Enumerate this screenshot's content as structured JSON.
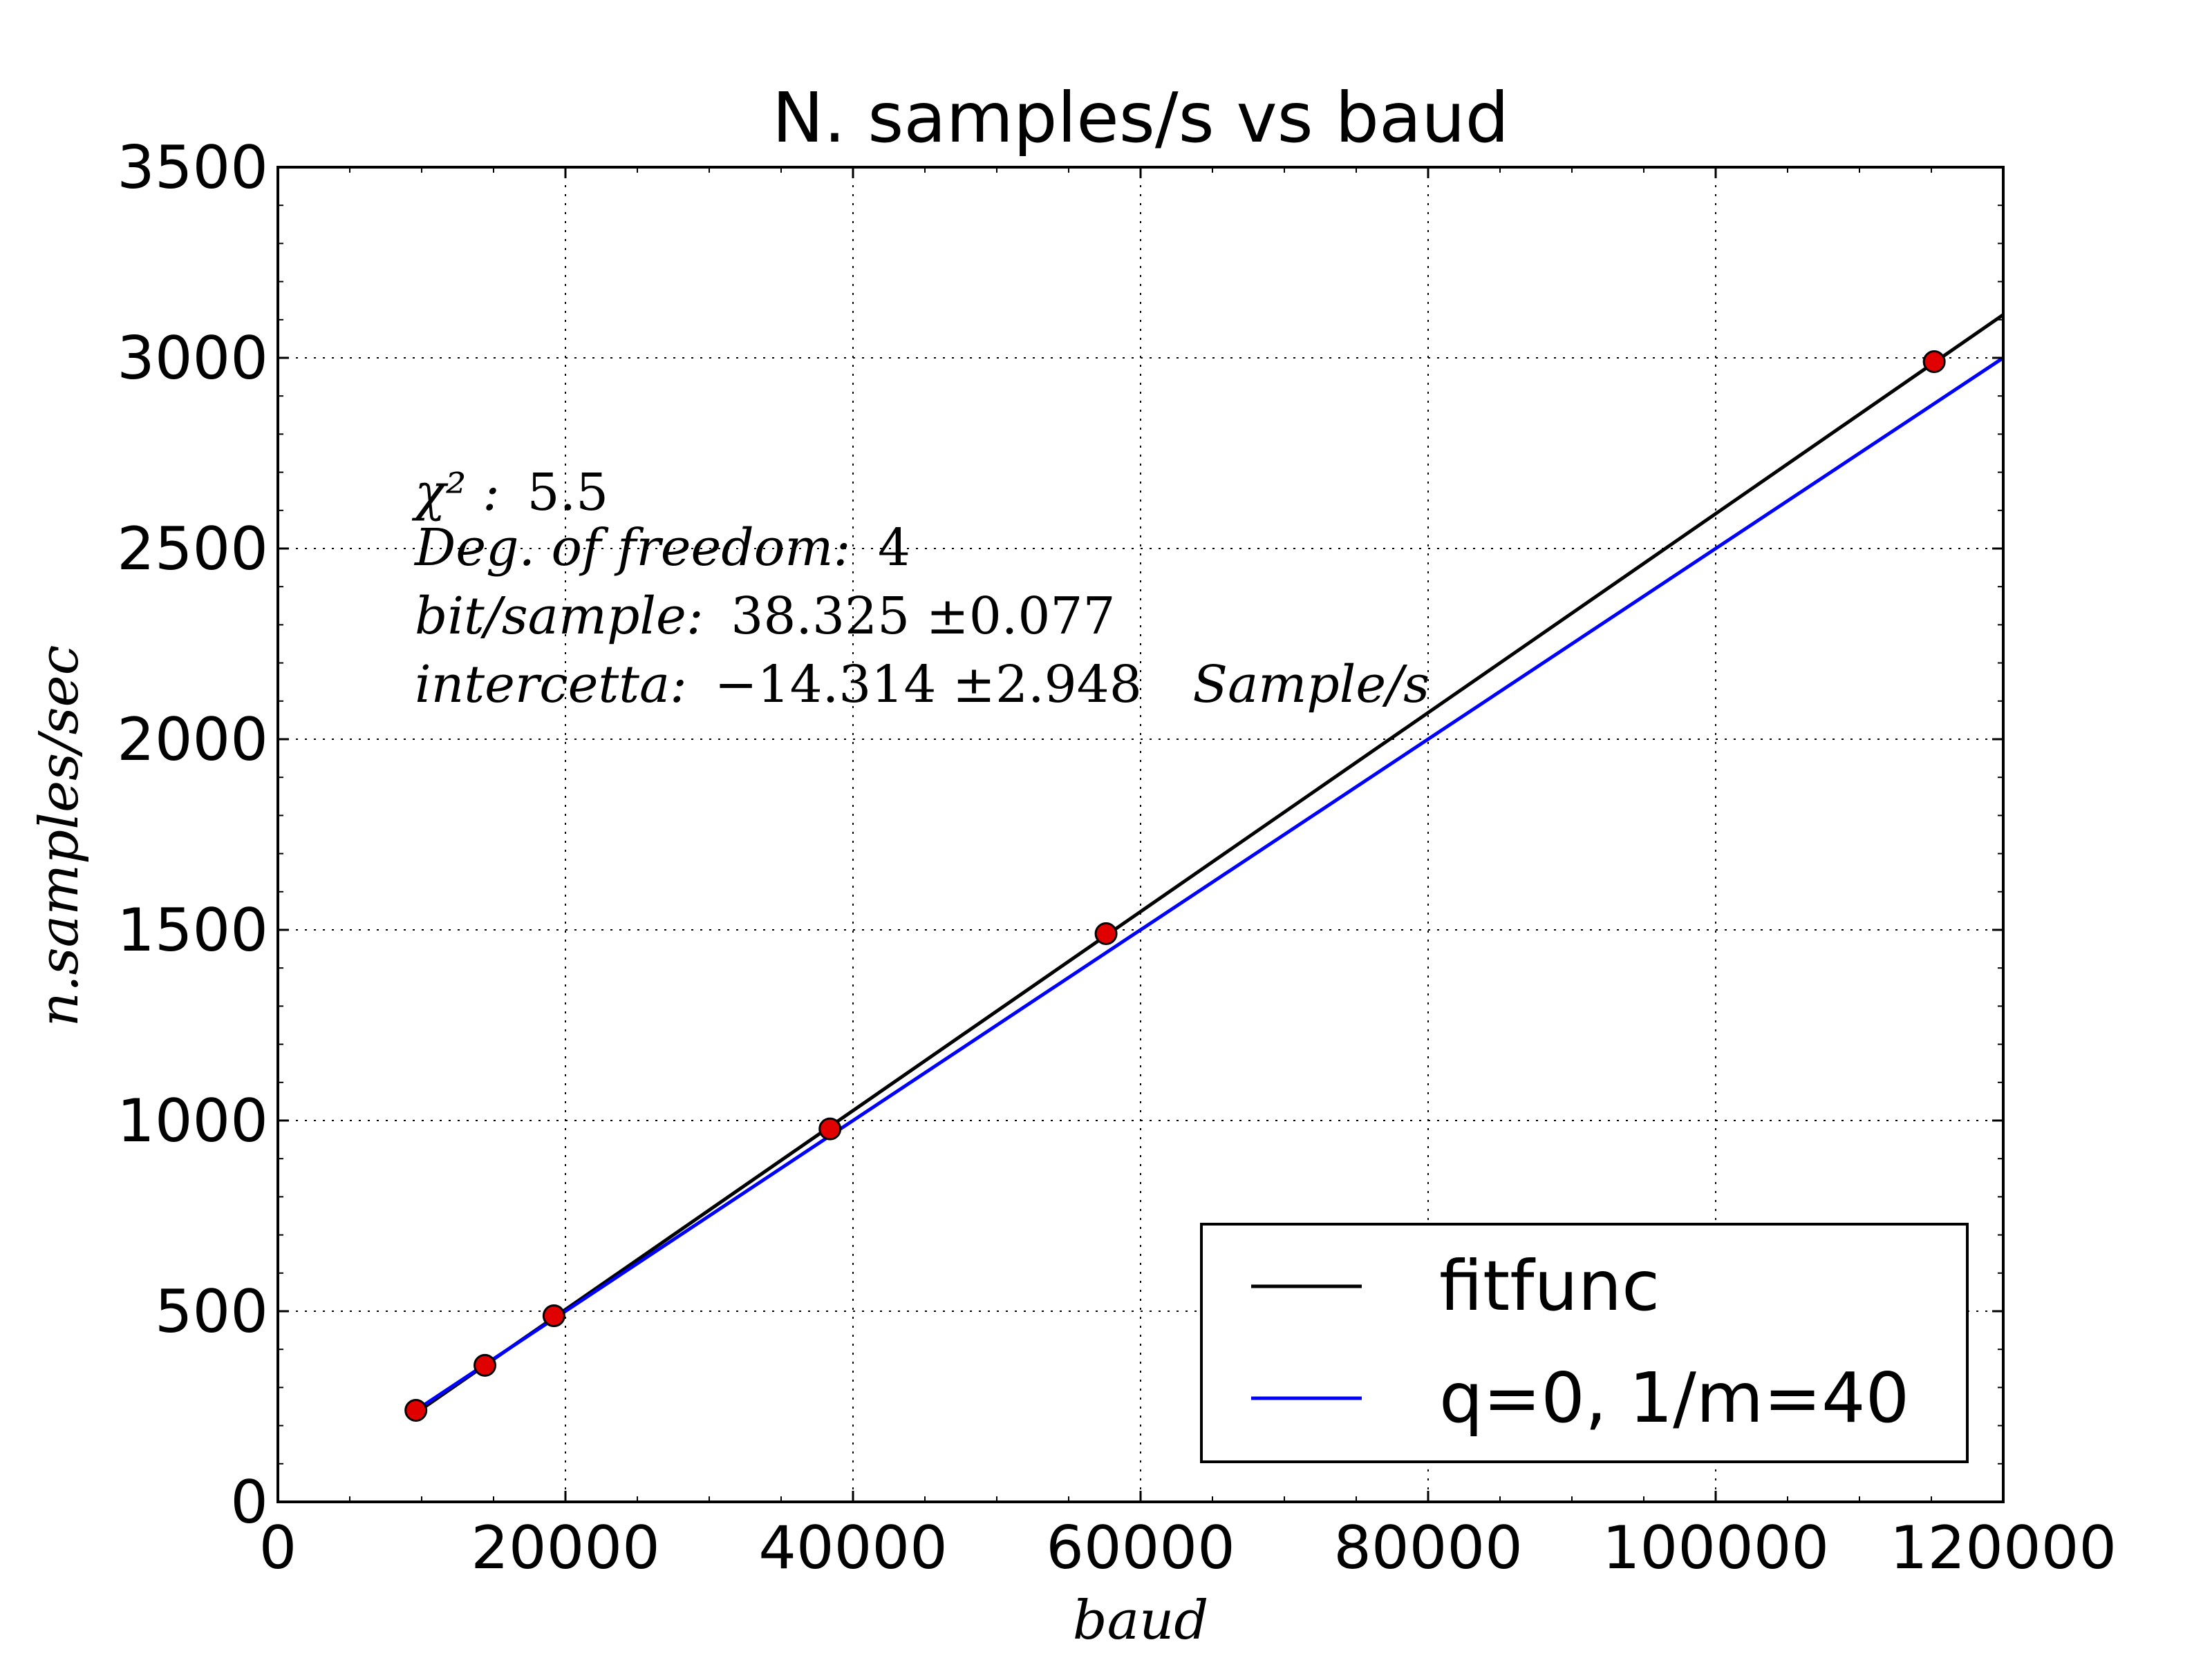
{
  "chart_data": {
    "type": "scatter",
    "title": "N. samples/s vs baud",
    "xlabel": "baud",
    "ylabel": "n.samples/sec",
    "xlim": [
      0,
      120000
    ],
    "ylim": [
      0,
      3500
    ],
    "grid": true,
    "x_ticks": [
      0,
      20000,
      40000,
      60000,
      80000,
      100000,
      120000
    ],
    "x_tick_labels": [
      "0",
      "20000",
      "40000",
      "60000",
      "80000",
      "100000",
      "120000"
    ],
    "y_ticks": [
      0,
      500,
      1000,
      1500,
      2000,
      2500,
      3000,
      3500
    ],
    "y_tick_labels": [
      "0",
      "500",
      "1000",
      "1500",
      "2000",
      "2500",
      "3000",
      "3500"
    ],
    "points": {
      "x": [
        9600,
        14400,
        19200,
        38400,
        57600,
        115200
      ],
      "y": [
        240,
        358,
        488,
        978,
        1490,
        2990
      ],
      "color": "#e00000"
    },
    "series": [
      {
        "name": "fitfunc",
        "type": "line",
        "x": [
          9600,
          120000
        ],
        "y": [
          233,
          3113
        ],
        "color": "#000000"
      },
      {
        "name": "q=0, 1/m=40",
        "type": "line",
        "x": [
          9600,
          120000
        ],
        "y": [
          240,
          3000
        ],
        "color": "#0000ff"
      }
    ],
    "legend_position": "bottom-right",
    "annotations": [
      {
        "label": "χ² :",
        "value": "5.5"
      },
      {
        "label": "Deg. of freedom:",
        "value": "4"
      },
      {
        "label": "bit/sample:",
        "value": "38.325 ±0.077"
      },
      {
        "label": "intercetta:",
        "value": "−14.314 ±2.948",
        "unit": "Sample/s"
      }
    ]
  }
}
